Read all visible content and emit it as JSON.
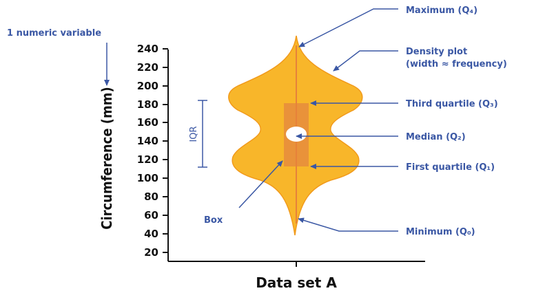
{
  "top_annotation": "1 numeric variable",
  "axis": {
    "y_label": "Circumference (mm)",
    "x_label": "Data set A",
    "y_ticks": [
      "240",
      "220",
      "200",
      "180",
      "160",
      "140",
      "120",
      "100",
      "80",
      "60",
      "40",
      "20"
    ]
  },
  "labels": {
    "maximum": "Maximum (Q₄)",
    "density_line1": "Density plot",
    "density_line2": "(width ≈ frequency)",
    "third_quartile": "Third quartile (Q₃)",
    "median": "Median (Q₂)",
    "first_quartile": "First quartile (Q₁)",
    "minimum": "Minimum (Q₀)",
    "box": "Box",
    "iqr": "IQR"
  },
  "colors": {
    "violin": "#f8b62a",
    "violin_stroke": "#f19a1b",
    "box": "#e9923a",
    "annotation": "#3a57a4",
    "axis": "#111111"
  }
}
